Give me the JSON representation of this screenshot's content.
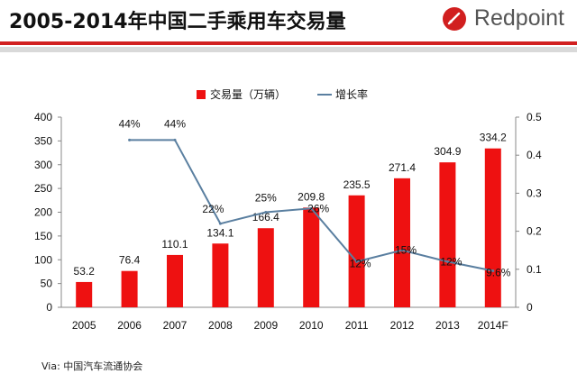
{
  "header": {
    "title": "2005-2014年中国二手乘用车交易量",
    "brand": "Redpoint"
  },
  "chart_data": {
    "type": "bar",
    "categories": [
      "2005",
      "2006",
      "2007",
      "2008",
      "2009",
      "2010",
      "2011",
      "2012",
      "2013",
      "2014F"
    ],
    "series": [
      {
        "name": "交易量（万辆）",
        "type": "bar",
        "axis": "left",
        "values": [
          53.2,
          76.4,
          110.1,
          134.1,
          166.4,
          209.8,
          235.5,
          271.4,
          304.9,
          334.2
        ],
        "labels": [
          "53.2",
          "76.4",
          "110.1",
          "134.1",
          "166.4",
          "209.8",
          "235.5",
          "271.4",
          "304.9",
          "334.2"
        ]
      },
      {
        "name": "增长率",
        "type": "line",
        "axis": "right",
        "values": [
          null,
          0.44,
          0.44,
          0.22,
          0.25,
          0.26,
          0.12,
          0.15,
          0.12,
          0.096
        ],
        "labels": [
          null,
          "44%",
          "44%",
          "22%",
          "25%",
          "26%",
          "12%",
          "15%",
          "12%",
          "9.6%"
        ]
      }
    ],
    "y_left": {
      "ylim": [
        0,
        400
      ],
      "ticks": [
        "0",
        "50",
        "100",
        "150",
        "200",
        "250",
        "300",
        "350",
        "400"
      ]
    },
    "y_right": {
      "ylim": [
        0,
        0.5
      ],
      "ticks": [
        "0",
        "0.1",
        "0.2",
        "0.3",
        "0.4",
        "0.5"
      ]
    },
    "legend": {
      "position": "top-center",
      "items": [
        "交易量（万辆）",
        "增长率"
      ]
    },
    "colors": {
      "bar": "#ee1111",
      "line": "#5a7fa0"
    }
  },
  "source": "Via: 中国汽车流通协会"
}
